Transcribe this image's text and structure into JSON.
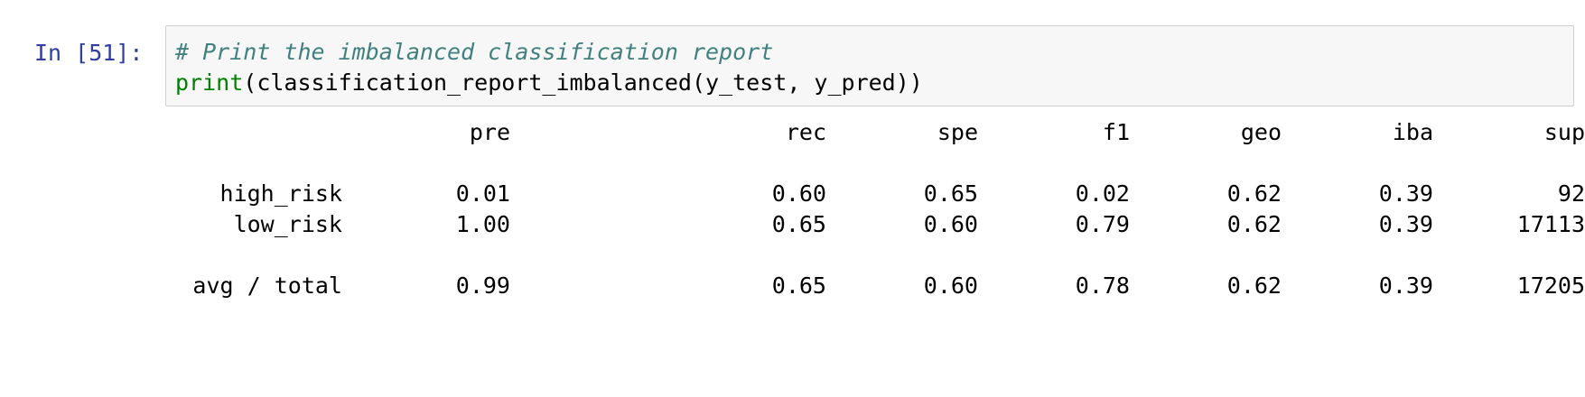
{
  "cell": {
    "prompt": "In [51]:",
    "code": {
      "comment": "# Print the imbalanced classification report",
      "call_keyword": "print",
      "call_args": "(classification_report_imbalanced(y_test, y_pred))"
    }
  },
  "report": {
    "headers": [
      "pre",
      "rec",
      "spe",
      "f1",
      "geo",
      "iba",
      "sup"
    ],
    "rows": [
      {
        "label": "high_risk",
        "values": [
          "0.01",
          "0.60",
          "0.65",
          "0.02",
          "0.62",
          "0.39",
          "92"
        ]
      },
      {
        "label": "low_risk",
        "values": [
          "1.00",
          "0.65",
          "0.60",
          "0.79",
          "0.62",
          "0.39",
          "17113"
        ]
      }
    ],
    "total": {
      "label": "avg / total",
      "values": [
        "0.99",
        "0.65",
        "0.60",
        "0.78",
        "0.62",
        "0.39",
        "17205"
      ]
    }
  }
}
